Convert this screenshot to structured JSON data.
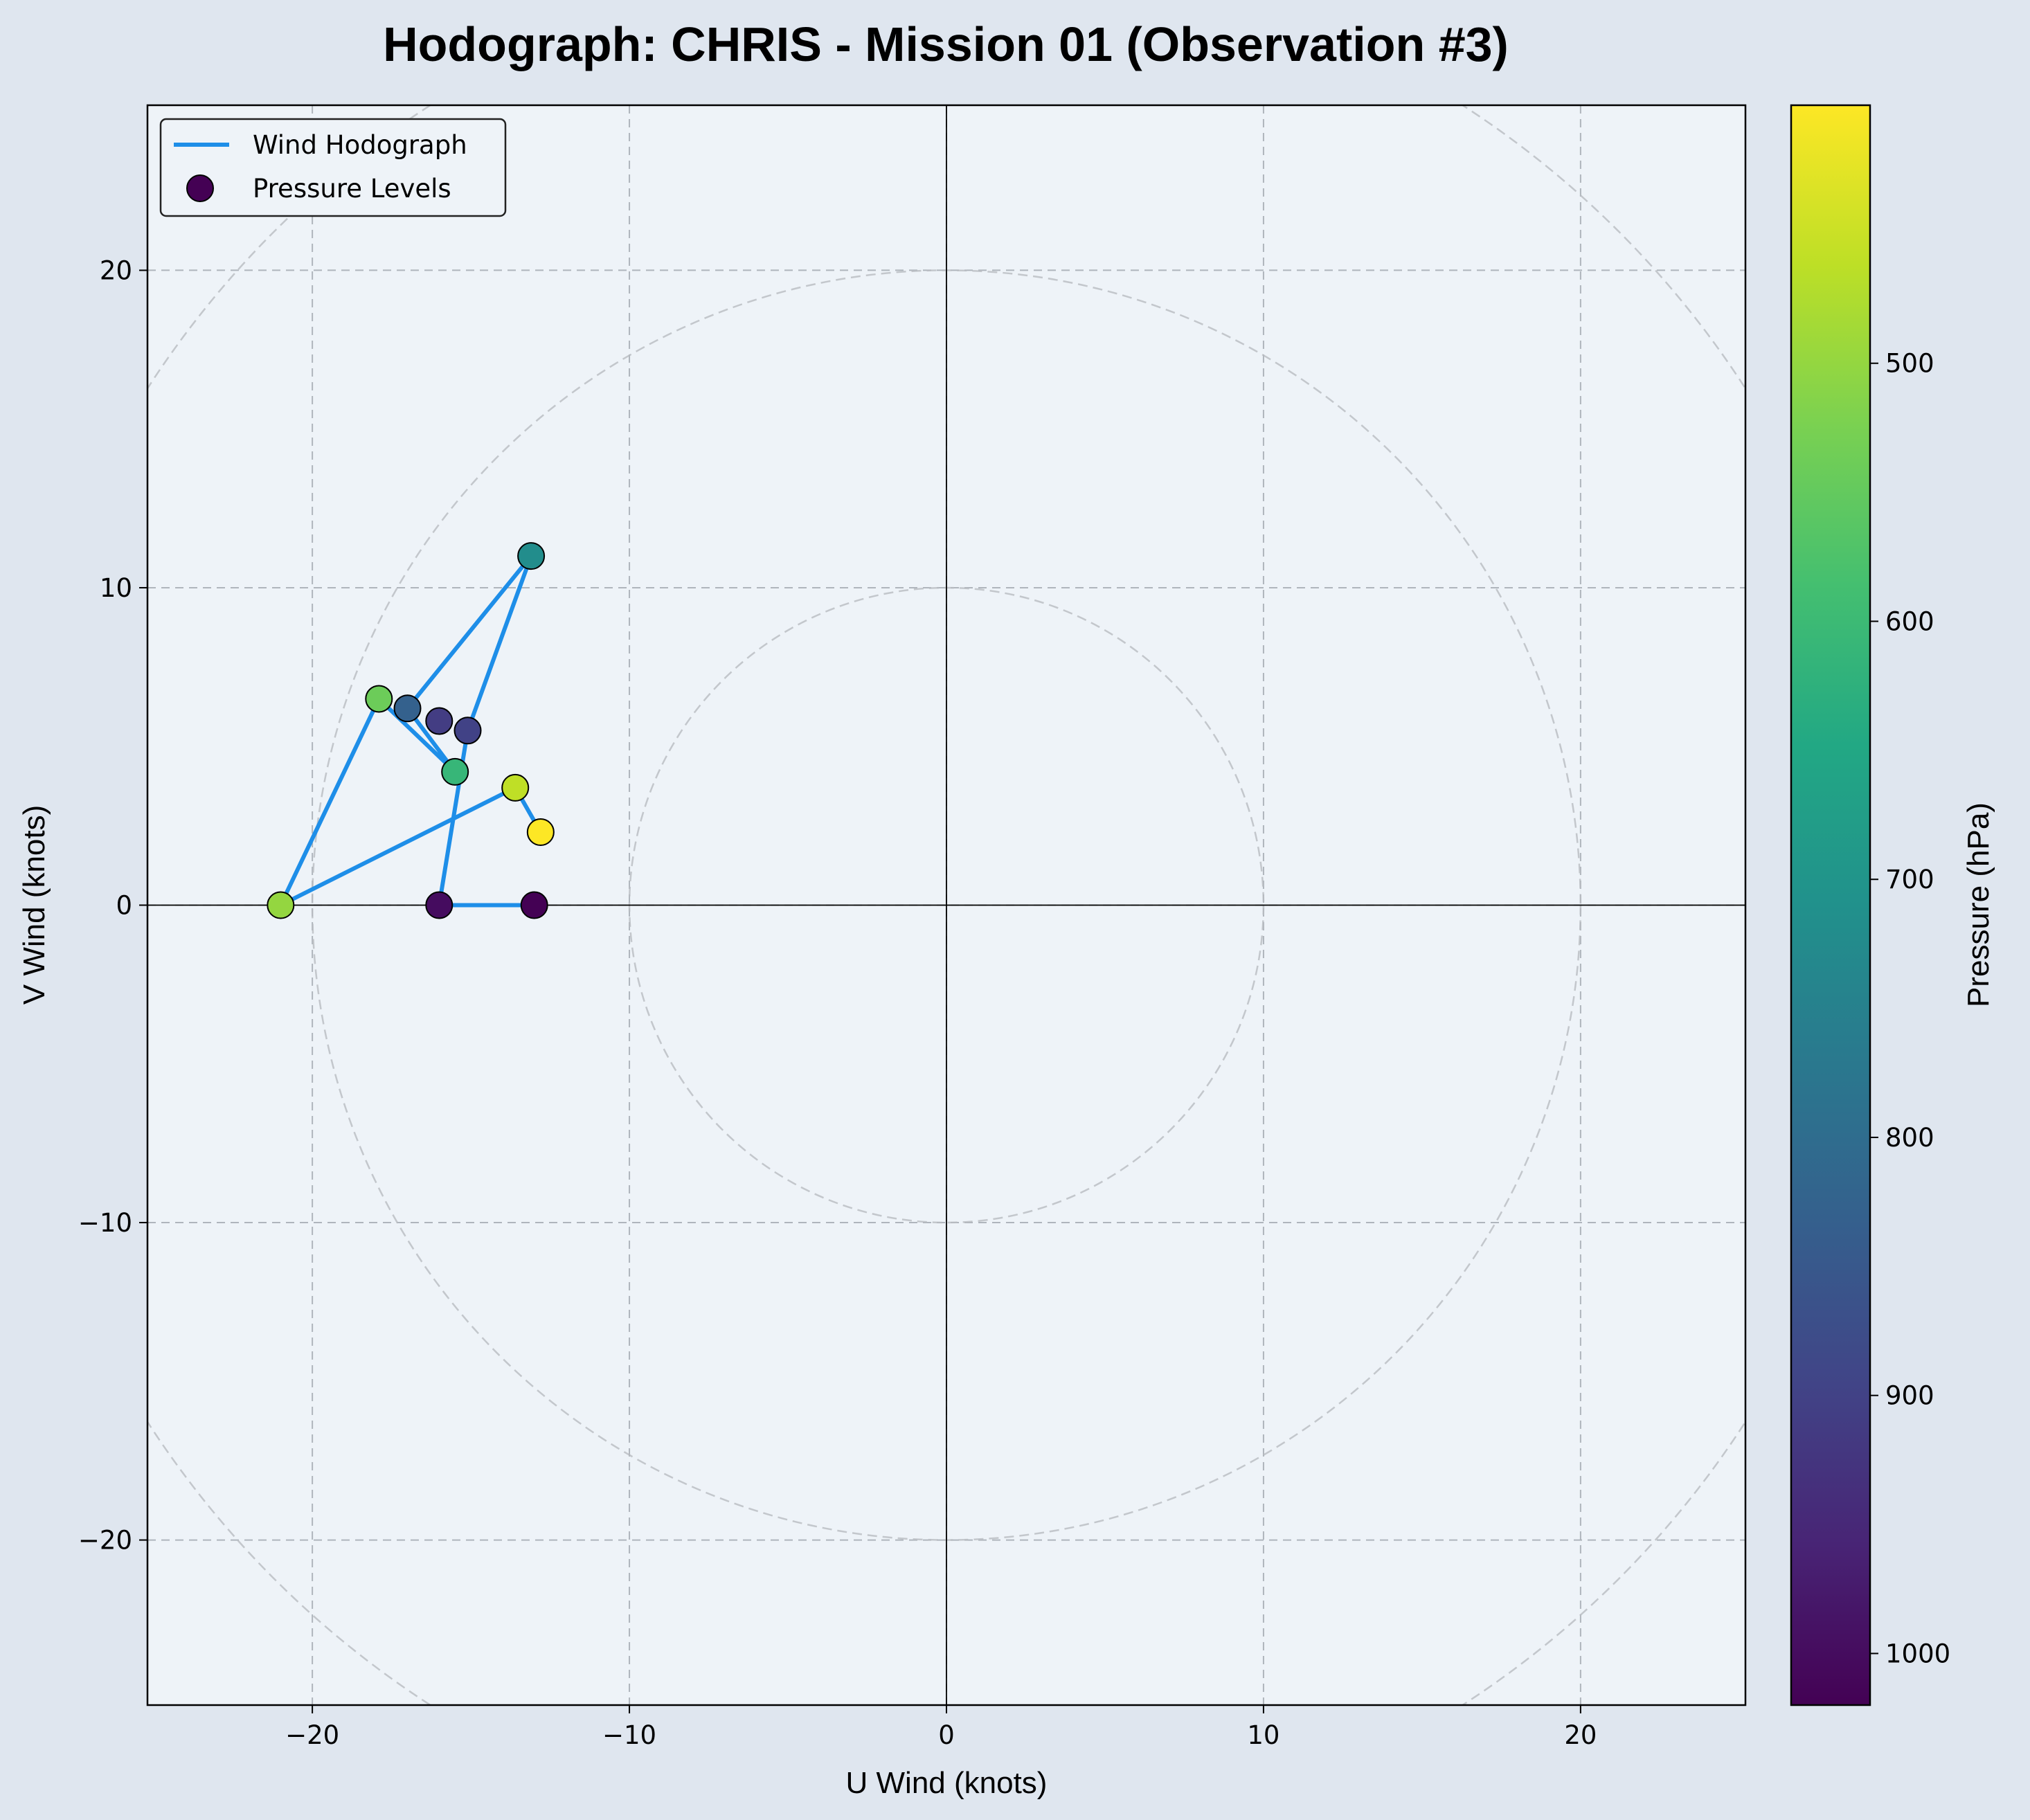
{
  "chart_data": {
    "type": "scatter",
    "title": "Hodograph: CHRIS - Mission 01 (Observation #3)",
    "xlabel": "U Wind (knots)",
    "ylabel": "V Wind (knots)",
    "xlim": [
      -25.2,
      25.2
    ],
    "ylim": [
      -25.2,
      25.2
    ],
    "xticks": [
      -20,
      -10,
      0,
      10,
      20
    ],
    "yticks": [
      -20,
      -10,
      0,
      10,
      20
    ],
    "xtick_labels": [
      "−20",
      "−10",
      "0",
      "10",
      "20"
    ],
    "ytick_labels": [
      "−20",
      "−10",
      "0",
      "10",
      "20"
    ],
    "grid": true,
    "range_rings": [
      10,
      20,
      30
    ],
    "legend_position": "upper-left",
    "series": [
      {
        "name": "Wind Hodograph",
        "kind": "line",
        "color": "#1e8ee8",
        "points": [
          {
            "u": -13.0,
            "v": 0.0
          },
          {
            "u": -16.0,
            "v": 0.0
          },
          {
            "u": -15.1,
            "v": 5.5
          },
          {
            "u": -13.1,
            "v": 11.0
          },
          {
            "u": -17.0,
            "v": 6.2
          },
          {
            "u": -15.5,
            "v": 4.2
          },
          {
            "u": -17.9,
            "v": 6.5
          },
          {
            "u": -21.0,
            "v": 0.0
          },
          {
            "u": -13.6,
            "v": 3.7
          },
          {
            "u": -12.8,
            "v": 2.3
          }
        ]
      },
      {
        "name": "Pressure Levels",
        "kind": "scatter",
        "points": [
          {
            "u": -13.0,
            "v": 0.0,
            "p": 1020
          },
          {
            "u": -16.0,
            "v": 0.0,
            "p": 1000
          },
          {
            "u": -16.0,
            "v": 5.8,
            "p": 910
          },
          {
            "u": -15.1,
            "v": 5.5,
            "p": 900
          },
          {
            "u": -13.1,
            "v": 11.0,
            "p": 720
          },
          {
            "u": -17.0,
            "v": 6.2,
            "p": 830
          },
          {
            "u": -15.5,
            "v": 4.2,
            "p": 610
          },
          {
            "u": -17.9,
            "v": 6.5,
            "p": 540
          },
          {
            "u": -21.0,
            "v": 0.0,
            "p": 500
          },
          {
            "u": -13.6,
            "v": 3.7,
            "p": 460
          },
          {
            "u": -12.8,
            "v": 2.3,
            "p": 400
          }
        ]
      }
    ],
    "colorbar": {
      "label": "Pressure (hPa)",
      "colormap": "viridis",
      "range": [
        400,
        1020
      ],
      "ticks": [
        500,
        600,
        700,
        800,
        900,
        1000
      ],
      "tick_labels": [
        "500",
        "600",
        "700",
        "800",
        "900",
        "1000"
      ],
      "reversed": true
    }
  }
}
